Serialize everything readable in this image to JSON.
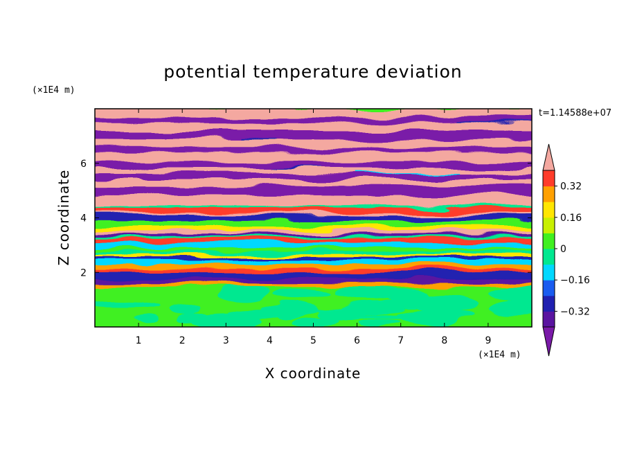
{
  "chart_data": {
    "type": "heatmap",
    "title": "potential temperature deviation",
    "xlabel": "X coordinate",
    "ylabel": "Z coordinate",
    "x_unit_label": "(×1E4 m)",
    "y_unit_label": "(×1E4 m)",
    "time_label": "t=1.14588e+07",
    "xlim": [
      0,
      10
    ],
    "ylim": [
      0,
      8
    ],
    "x_ticks": [
      "1",
      "2",
      "3",
      "4",
      "5",
      "6",
      "7",
      "8",
      "9"
    ],
    "y_ticks": [
      "2",
      "4",
      "6"
    ],
    "colorbar": {
      "levels": [
        -0.4,
        -0.32,
        -0.24,
        -0.16,
        -0.08,
        0,
        0.08,
        0.16,
        0.24,
        0.32,
        0.4
      ],
      "labels": [
        "0.32",
        "0.16",
        "0",
        "−0.16",
        "−0.32"
      ],
      "label_values": [
        0.32,
        0.16,
        0,
        -0.16,
        -0.32
      ],
      "over_color": "#f4a8a0",
      "under_color": "#7a1aa8",
      "band_colors": [
        "#5a14a0",
        "#2020b0",
        "#1a5cf0",
        "#00d8ff",
        "#00e890",
        "#40f020",
        "#c8f000",
        "#ffe600",
        "#ffa000",
        "#ff3c2a"
      ]
    },
    "regions": [
      {
        "z_range": [
          0,
          1.6
        ],
        "description_value": "mostly 0 to 0.08",
        "colors": [
          "#40f020",
          "#00e890"
        ]
      },
      {
        "z_range": [
          1.6,
          4.5
        ],
        "description_value": "mixed bands -0.4 to 0.4",
        "colors": [
          "#5a14a0",
          "#2020b0",
          "#00d8ff",
          "#00e890",
          "#ffe600",
          "#ff3c2a",
          "#f4a8a0"
        ]
      },
      {
        "z_range": [
          4.5,
          8
        ],
        "description_value": "alternating > 0.4 and < -0.4",
        "colors": [
          "#f4a8a0",
          "#7a1aa8"
        ]
      }
    ]
  }
}
